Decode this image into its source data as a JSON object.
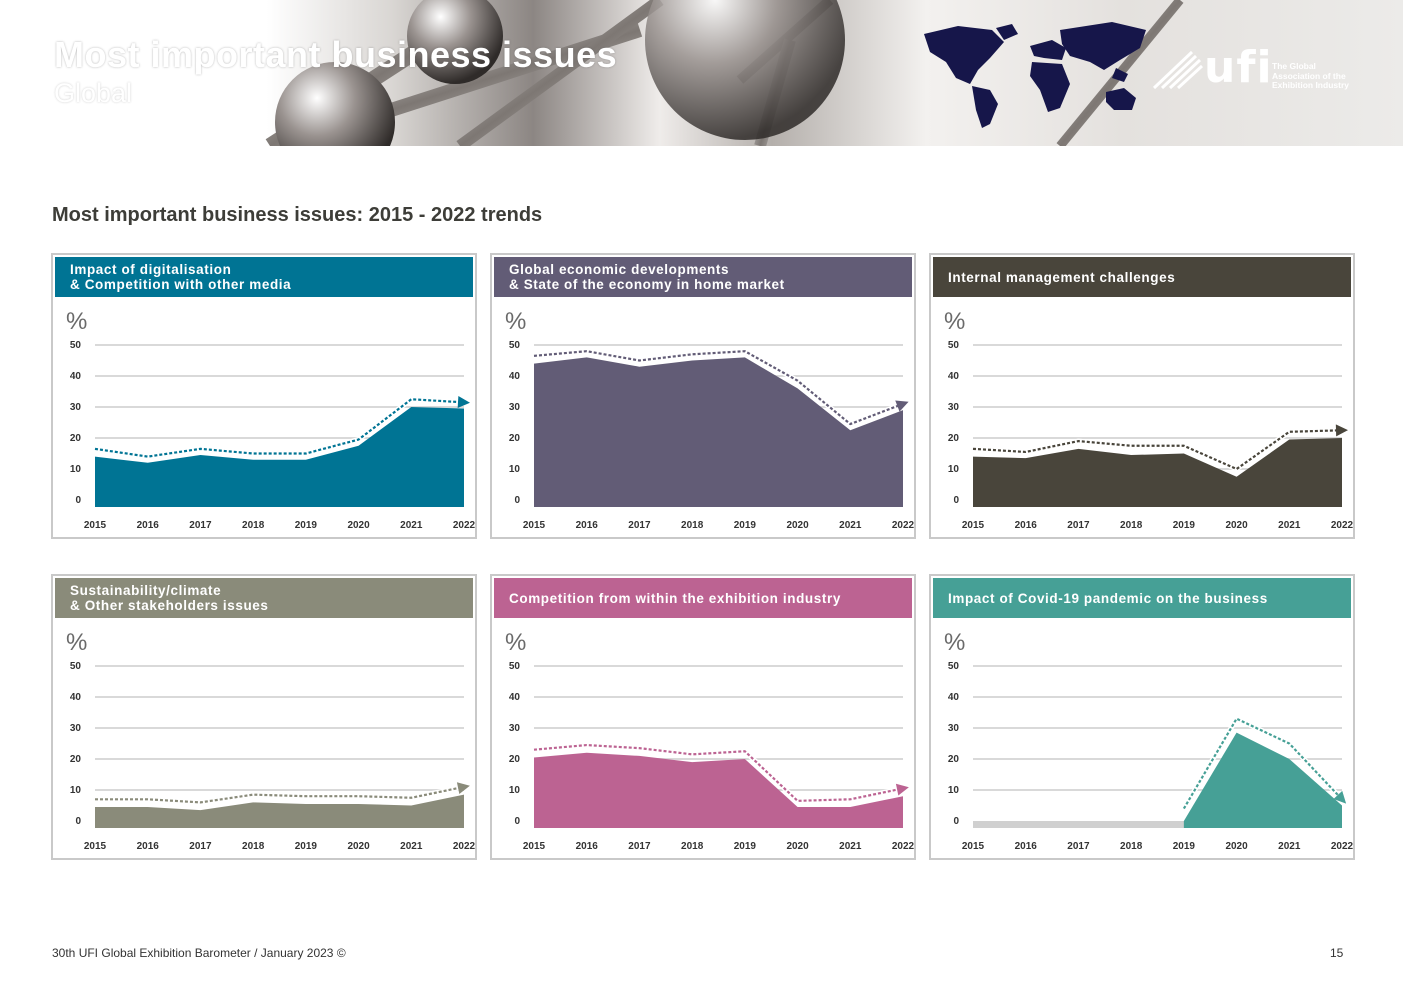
{
  "header": {
    "title": "Most important business issues",
    "subtitle": "Global",
    "logo_word": "ufi",
    "logo_tagline": [
      "The Global",
      "Association of the",
      "Exhibition Industry"
    ]
  },
  "section_title": "Most important business issues: 2015 - 2022 trends",
  "footer": {
    "left": "30th UFI Global Exhibition Barometer / January 2023 ©",
    "page_number": "15"
  },
  "colors": {
    "digitalisation": "#007494",
    "economy": "#625c76",
    "management": "#49453b",
    "sustainability": "#8a8b7a",
    "competition": "#bc6392",
    "covid": "#46a096",
    "baseline": "#d0d0d0",
    "grid": "#d9d9d9"
  },
  "chart_data": [
    {
      "type": "area",
      "title": [
        "Impact of digitalisation",
        "& Competition with other media"
      ],
      "color_key": "digitalisation",
      "unit_label": "%",
      "x": [
        "2015",
        "2016",
        "2017",
        "2018",
        "2019",
        "2020",
        "2021",
        "2022"
      ],
      "ylim": [
        0,
        50
      ],
      "yticks": [
        0,
        10,
        20,
        30,
        40,
        50
      ],
      "series": [
        {
          "name": "area",
          "values": [
            14,
            12,
            14.5,
            13,
            13,
            17.5,
            30,
            29.5
          ]
        },
        {
          "name": "trend",
          "values": [
            16.5,
            14,
            16.5,
            15,
            15,
            19.5,
            32.5,
            31.5
          ]
        }
      ]
    },
    {
      "type": "area",
      "title": [
        "Global economic developments",
        "& State of the economy in home market"
      ],
      "color_key": "economy",
      "unit_label": "%",
      "x": [
        "2015",
        "2016",
        "2017",
        "2018",
        "2019",
        "2020",
        "2021",
        "2022"
      ],
      "ylim": [
        0,
        50
      ],
      "yticks": [
        0,
        10,
        20,
        30,
        40,
        50
      ],
      "series": [
        {
          "name": "area",
          "values": [
            44,
            46,
            43,
            45,
            46,
            36,
            22.5,
            29
          ]
        },
        {
          "name": "trend",
          "values": [
            46.5,
            48,
            45,
            47,
            48,
            38.5,
            24.5,
            31
          ]
        }
      ]
    },
    {
      "type": "area",
      "title": [
        "Internal management challenges"
      ],
      "color_key": "management",
      "unit_label": "%",
      "x": [
        "2015",
        "2016",
        "2017",
        "2018",
        "2019",
        "2020",
        "2021",
        "2022"
      ],
      "ylim": [
        0,
        50
      ],
      "yticks": [
        0,
        10,
        20,
        30,
        40,
        50
      ],
      "series": [
        {
          "name": "area",
          "values": [
            14,
            13.5,
            16.5,
            14.5,
            15,
            7.5,
            19.5,
            20
          ]
        },
        {
          "name": "trend",
          "values": [
            16.5,
            15.5,
            19,
            17.5,
            17.5,
            10,
            22,
            22.5
          ]
        }
      ]
    },
    {
      "type": "area",
      "title": [
        "Sustainability/climate",
        "& Other stakeholders issues"
      ],
      "color_key": "sustainability",
      "unit_label": "%",
      "x": [
        "2015",
        "2016",
        "2017",
        "2018",
        "2019",
        "2020",
        "2021",
        "2022"
      ],
      "ylim": [
        0,
        50
      ],
      "yticks": [
        0,
        10,
        20,
        30,
        40,
        50
      ],
      "series": [
        {
          "name": "area",
          "values": [
            4.5,
            4.5,
            3.5,
            6,
            5.5,
            5.5,
            5,
            8.5
          ]
        },
        {
          "name": "trend",
          "values": [
            7,
            7,
            6,
            8.5,
            8,
            8,
            7.5,
            11
          ]
        }
      ]
    },
    {
      "type": "area",
      "title": [
        "Competition from within the exhibition industry"
      ],
      "color_key": "competition",
      "unit_label": "%",
      "x": [
        "2015",
        "2016",
        "2017",
        "2018",
        "2019",
        "2020",
        "2021",
        "2022"
      ],
      "ylim": [
        0,
        50
      ],
      "yticks": [
        0,
        10,
        20,
        30,
        40,
        50
      ],
      "series": [
        {
          "name": "area",
          "values": [
            20.5,
            22,
            21,
            19,
            20,
            4.5,
            4.5,
            8
          ]
        },
        {
          "name": "trend",
          "values": [
            23,
            24.5,
            23.5,
            21.5,
            22.5,
            6.5,
            7,
            10.5
          ]
        }
      ]
    },
    {
      "type": "area",
      "title": [
        "Impact of Covid-19 pandemic on the business"
      ],
      "color_key": "covid",
      "unit_label": "%",
      "x": [
        "2015",
        "2016",
        "2017",
        "2018",
        "2019",
        "2020",
        "2021",
        "2022"
      ],
      "ylim": [
        0,
        50
      ],
      "yticks": [
        0,
        10,
        20,
        30,
        40,
        50
      ],
      "series": [
        {
          "name": "area",
          "values": [
            null,
            null,
            null,
            null,
            0,
            28.5,
            20,
            5
          ]
        },
        {
          "name": "trend",
          "values": [
            null,
            null,
            null,
            null,
            4,
            33,
            25,
            7
          ]
        }
      ]
    }
  ]
}
